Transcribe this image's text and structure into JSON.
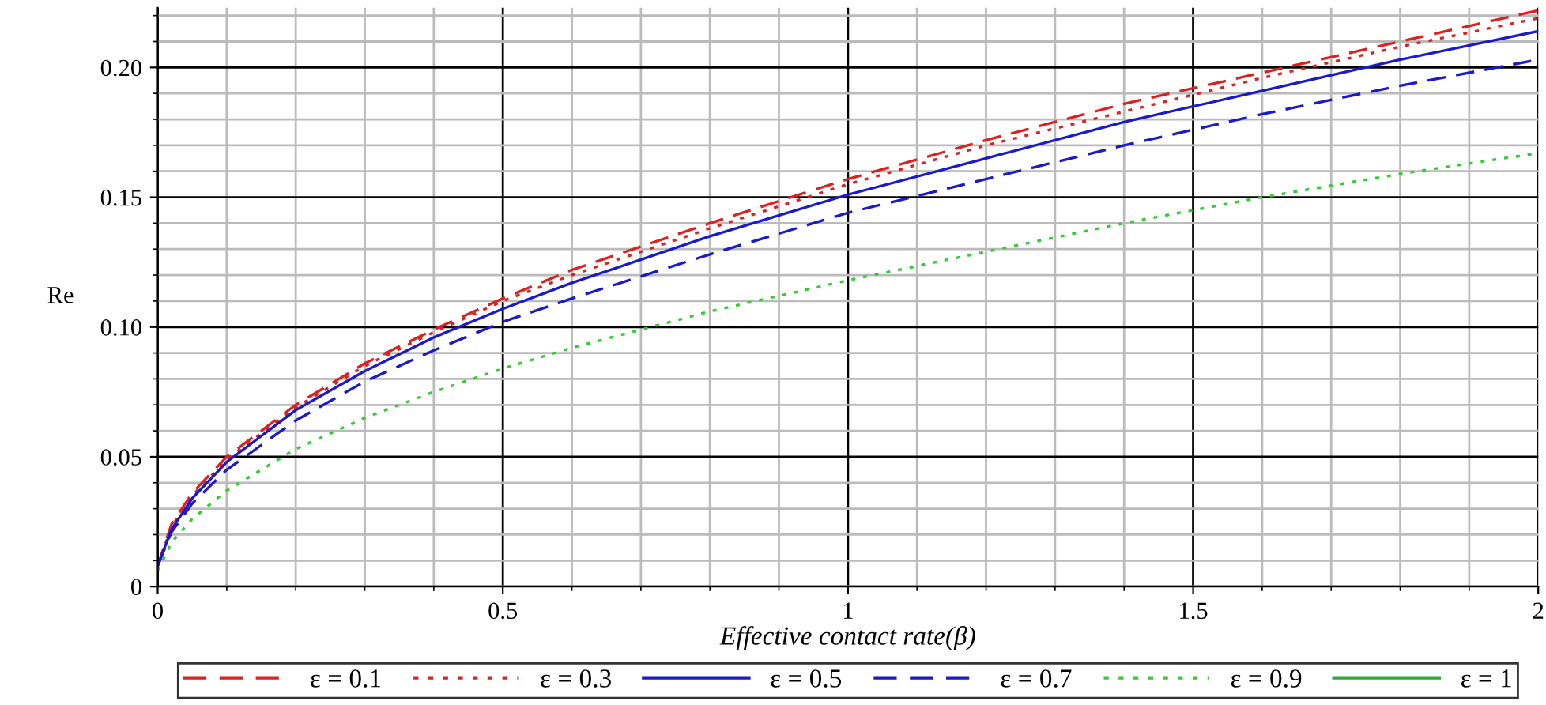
{
  "chart_data": {
    "type": "line",
    "xlabel": "Effective contact rate(β)",
    "ylabel": "Re",
    "x": [
      0,
      0.02,
      0.05,
      0.1,
      0.2,
      0.3,
      0.4,
      0.5,
      0.6,
      0.8,
      1.0,
      1.2,
      1.4,
      1.6,
      1.8,
      2.0
    ],
    "series": [
      {
        "name": "ε = 0.1",
        "color": "#dd2020",
        "line_style": "dashed",
        "values": [
          0.008,
          0.024,
          0.036,
          0.05,
          0.07,
          0.086,
          0.099,
          0.111,
          0.122,
          0.14,
          0.157,
          0.172,
          0.186,
          0.198,
          0.21,
          0.222
        ]
      },
      {
        "name": "ε = 0.3",
        "color": "#dd2020",
        "line_style": "dotted",
        "values": [
          0.008,
          0.023,
          0.035,
          0.049,
          0.069,
          0.085,
          0.098,
          0.11,
          0.12,
          0.138,
          0.155,
          0.17,
          0.183,
          0.196,
          0.208,
          0.219
        ]
      },
      {
        "name": "ε = 0.5",
        "color": "#1a1acc",
        "line_style": "solid",
        "values": [
          0.008,
          0.022,
          0.034,
          0.048,
          0.068,
          0.083,
          0.096,
          0.107,
          0.117,
          0.135,
          0.151,
          0.165,
          0.179,
          0.191,
          0.203,
          0.214
        ]
      },
      {
        "name": "ε = 0.7",
        "color": "#1a1acc",
        "line_style": "dashed",
        "values": [
          0.008,
          0.021,
          0.032,
          0.045,
          0.064,
          0.079,
          0.091,
          0.102,
          0.111,
          0.128,
          0.144,
          0.157,
          0.17,
          0.182,
          0.193,
          0.203
        ]
      },
      {
        "name": "ε = 0.9",
        "color": "#33cc33",
        "line_style": "dotted",
        "values": [
          0.006,
          0.017,
          0.026,
          0.037,
          0.053,
          0.065,
          0.075,
          0.084,
          0.092,
          0.106,
          0.118,
          0.129,
          0.14,
          0.15,
          0.159,
          0.167
        ]
      },
      {
        "name": "ε = 1",
        "color": "#33aa33",
        "line_style": "solid",
        "values": [
          0,
          0,
          0,
          0,
          0,
          0,
          0,
          0,
          0,
          0,
          0,
          0,
          0,
          0,
          0,
          0
        ]
      }
    ],
    "xlim": [
      0,
      2
    ],
    "xticks": [
      0,
      0.5,
      1,
      1.5,
      2
    ],
    "ylim": [
      0,
      0.223
    ],
    "yticks": [
      0,
      0.05,
      {
        "value": 0.1,
        "label": "0.10"
      },
      0.15,
      {
        "value": 0.2,
        "label": "0.20"
      }
    ],
    "grid": true,
    "legend": "bottom"
  }
}
